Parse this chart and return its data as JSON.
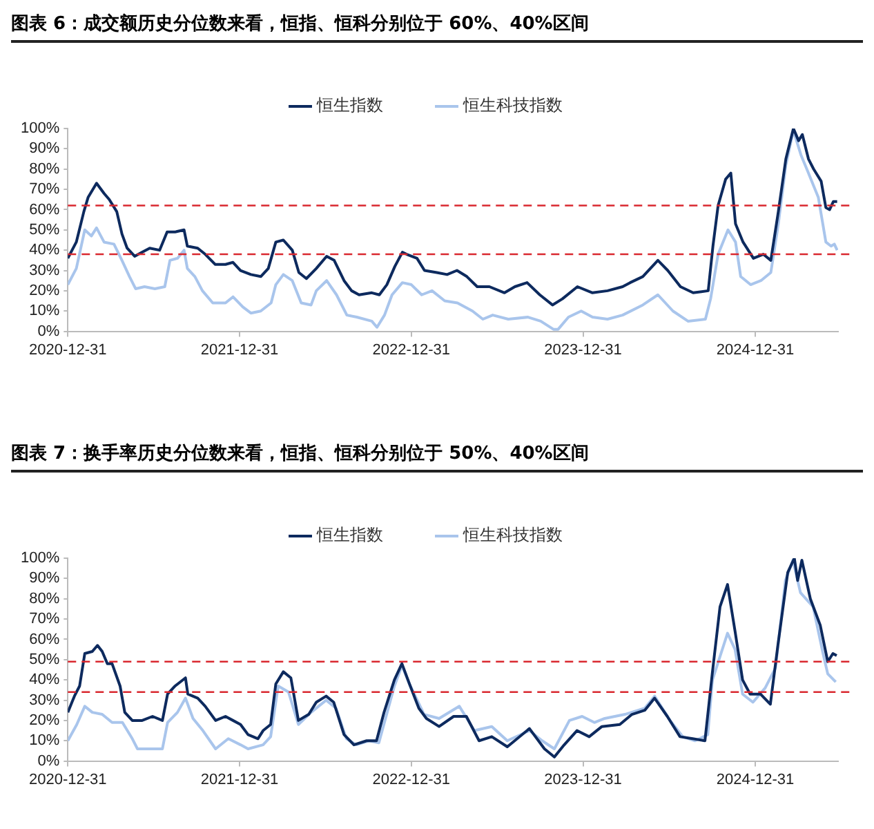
{
  "chart_data": [
    {
      "type": "line",
      "title": "图表 6：成交额历史分位数来看，恒指、恒科分别位于 60%、40%区间",
      "legend": "top",
      "line_style": "solid",
      "marker": "none",
      "xlim": [
        "2020-12-31",
        "2025-06-25"
      ],
      "xticks": [
        "2020-12-31",
        "2021-12-31",
        "2022-12-31",
        "2023-12-31",
        "2024-12-31"
      ],
      "ylim": [
        0,
        100
      ],
      "yticks": [
        {
          "value": 0,
          "label": "0%"
        },
        {
          "value": 10,
          "label": "10%"
        },
        {
          "value": 20,
          "label": "20%"
        },
        {
          "value": 30,
          "label": "30%"
        },
        {
          "value": 40,
          "label": "40%"
        },
        {
          "value": 50,
          "label": "50%"
        },
        {
          "value": 60,
          "label": "60%"
        },
        {
          "value": 70,
          "label": "70%"
        },
        {
          "value": 80,
          "label": "80%"
        },
        {
          "value": 90,
          "label": "90%"
        },
        {
          "value": 100,
          "label": "100%"
        }
      ],
      "ref_lines": [
        {
          "axis": "y",
          "value": 62,
          "color": "#d9282f",
          "line_style": "dashed"
        },
        {
          "axis": "y",
          "value": 38,
          "color": "#d9282f",
          "line_style": "dashed"
        }
      ],
      "series": [
        {
          "name": "恒生指数",
          "color": "#0d2a5e",
          "x": [
            "2020-12-31",
            "2021-01-18",
            "2021-02-03",
            "2021-02-12",
            "2021-03-02",
            "2021-03-18",
            "2021-03-29",
            "2021-04-14",
            "2021-04-25",
            "2021-05-06",
            "2021-05-22",
            "2021-06-07",
            "2021-06-23",
            "2021-07-14",
            "2021-07-30",
            "2021-08-16",
            "2021-09-04",
            "2021-09-11",
            "2021-10-03",
            "2021-10-19",
            "2021-11-09",
            "2021-12-01",
            "2021-12-17",
            "2022-01-02",
            "2022-01-24",
            "2022-02-14",
            "2022-03-02",
            "2022-03-18",
            "2022-04-03",
            "2022-04-22",
            "2022-05-06",
            "2022-05-22",
            "2022-06-12",
            "2022-07-04",
            "2022-07-20",
            "2022-08-10",
            "2022-08-26",
            "2022-09-11",
            "2022-10-08",
            "2022-10-24",
            "2022-11-09",
            "2022-11-26",
            "2022-12-12",
            "2022-12-21",
            "2023-01-12",
            "2023-01-28",
            "2023-02-23",
            "2023-03-17",
            "2023-04-07",
            "2023-04-28",
            "2023-05-20",
            "2023-06-15",
            "2023-07-17",
            "2023-08-08",
            "2023-09-03",
            "2023-09-30",
            "2023-10-27",
            "2023-11-17",
            "2023-12-19",
            "2024-01-20",
            "2024-02-21",
            "2024-03-24",
            "2024-04-09",
            "2024-05-06",
            "2024-06-07",
            "2024-06-28",
            "2024-07-25",
            "2024-08-21",
            "2024-09-22",
            "2024-10-02",
            "2024-10-13",
            "2024-10-29",
            "2024-11-09",
            "2024-11-19",
            "2024-12-05",
            "2024-12-27",
            "2025-01-17",
            "2025-02-02",
            "2025-02-18",
            "2025-03-06",
            "2025-03-22",
            "2025-04-02",
            "2025-04-10",
            "2025-04-23",
            "2025-05-04",
            "2025-05-20",
            "2025-05-30",
            "2025-06-07",
            "2025-06-15",
            "2025-06-23"
          ],
          "values": [
            36,
            44,
            59,
            66,
            73,
            68,
            65,
            59,
            48,
            41,
            37,
            39,
            41,
            40,
            49,
            49,
            50,
            42,
            41,
            38,
            33,
            33,
            34,
            30,
            28,
            27,
            31,
            44,
            45,
            40,
            29,
            26,
            31,
            37,
            35,
            25,
            20,
            18,
            19,
            18,
            23,
            32,
            39,
            38,
            36,
            30,
            29,
            28,
            30,
            27,
            22,
            22,
            19,
            22,
            24,
            18,
            13,
            16,
            22,
            19,
            20,
            22,
            24,
            27,
            35,
            30,
            22,
            19,
            20,
            42,
            62,
            75,
            78,
            53,
            44,
            36,
            38,
            35,
            59,
            85,
            100,
            94,
            97,
            85,
            80,
            74,
            61,
            60,
            64,
            64
          ]
        },
        {
          "name": "恒生科技指数",
          "color": "#a9c5ec",
          "x": [
            "2020-12-31",
            "2021-01-18",
            "2021-02-05",
            "2021-02-19",
            "2021-03-02",
            "2021-03-18",
            "2021-04-08",
            "2021-04-25",
            "2021-05-11",
            "2021-05-24",
            "2021-06-12",
            "2021-07-04",
            "2021-07-25",
            "2021-08-05",
            "2021-08-21",
            "2021-09-04",
            "2021-09-11",
            "2021-09-27",
            "2021-10-13",
            "2021-11-04",
            "2021-12-01",
            "2021-12-17",
            "2022-01-07",
            "2022-01-24",
            "2022-02-14",
            "2022-03-08",
            "2022-03-18",
            "2022-04-03",
            "2022-04-22",
            "2022-05-11",
            "2022-06-01",
            "2022-06-12",
            "2022-07-04",
            "2022-07-25",
            "2022-08-16",
            "2022-09-06",
            "2022-10-08",
            "2022-10-19",
            "2022-11-04",
            "2022-11-20",
            "2022-12-12",
            "2022-12-31",
            "2023-01-22",
            "2023-02-13",
            "2023-03-12",
            "2023-04-08",
            "2023-05-10",
            "2023-06-01",
            "2023-06-22",
            "2023-07-25",
            "2023-09-05",
            "2023-10-02",
            "2023-10-29",
            "2023-11-08",
            "2023-11-30",
            "2023-12-27",
            "2024-01-20",
            "2024-02-21",
            "2024-03-24",
            "2024-05-06",
            "2024-06-07",
            "2024-07-09",
            "2024-08-10",
            "2024-09-16",
            "2024-09-27",
            "2024-10-13",
            "2024-11-03",
            "2024-11-19",
            "2024-11-30",
            "2024-12-21",
            "2025-01-12",
            "2025-02-02",
            "2025-02-18",
            "2025-03-06",
            "2025-03-22",
            "2025-04-07",
            "2025-04-23",
            "2025-05-14",
            "2025-05-30",
            "2025-06-10",
            "2025-06-17",
            "2025-06-23"
          ],
          "values": [
            23,
            31,
            50,
            47,
            51,
            44,
            43,
            35,
            27,
            21,
            22,
            21,
            22,
            35,
            36,
            40,
            31,
            27,
            20,
            14,
            14,
            17,
            12,
            9,
            10,
            14,
            23,
            28,
            25,
            14,
            13,
            20,
            25,
            18,
            8,
            7,
            5,
            2,
            8,
            18,
            24,
            23,
            18,
            20,
            15,
            14,
            10,
            6,
            8,
            6,
            7,
            5,
            1,
            1,
            7,
            10,
            7,
            6,
            8,
            13,
            18,
            10,
            5,
            6,
            16,
            38,
            50,
            44,
            27,
            23,
            25,
            29,
            53,
            82,
            99,
            87,
            78,
            66,
            44,
            42,
            43,
            40
          ]
        }
      ]
    },
    {
      "type": "line",
      "title": "图表 7：换手率历史分位数来看，恒指、恒科分别位于 50%、40%区间",
      "legend": "top",
      "line_style": "solid",
      "marker": "none",
      "xlim": [
        "2020-12-31",
        "2025-06-25"
      ],
      "xticks": [
        "2020-12-31",
        "2021-12-31",
        "2022-12-31",
        "2023-12-31",
        "2024-12-31"
      ],
      "ylim": [
        0,
        100
      ],
      "yticks": [
        {
          "value": 0,
          "label": "0%"
        },
        {
          "value": 10,
          "label": "10%"
        },
        {
          "value": 20,
          "label": "20%"
        },
        {
          "value": 30,
          "label": "30%"
        },
        {
          "value": 40,
          "label": "40%"
        },
        {
          "value": 50,
          "label": "50%"
        },
        {
          "value": 60,
          "label": "60%"
        },
        {
          "value": 70,
          "label": "70%"
        },
        {
          "value": 80,
          "label": "80%"
        },
        {
          "value": 90,
          "label": "90%"
        },
        {
          "value": 100,
          "label": "100%"
        }
      ],
      "ref_lines": [
        {
          "axis": "y",
          "value": 49,
          "color": "#d9282f",
          "line_style": "dashed"
        },
        {
          "axis": "y",
          "value": 34,
          "color": "#d9282f",
          "line_style": "dashed"
        }
      ],
      "series": [
        {
          "name": "恒生指数",
          "color": "#0d2a5e",
          "x": [
            "2020-12-31",
            "2021-01-14",
            "2021-01-25",
            "2021-02-05",
            "2021-02-21",
            "2021-03-04",
            "2021-03-14",
            "2021-03-25",
            "2021-04-04",
            "2021-04-21",
            "2021-05-01",
            "2021-05-17",
            "2021-06-07",
            "2021-06-29",
            "2021-07-20",
            "2021-07-31",
            "2021-08-16",
            "2021-09-07",
            "2021-09-12",
            "2021-10-03",
            "2021-10-19",
            "2021-11-10",
            "2021-12-01",
            "2021-12-17",
            "2022-01-02",
            "2022-01-18",
            "2022-02-08",
            "2022-02-19",
            "2022-03-07",
            "2022-03-18",
            "2022-04-03",
            "2022-04-19",
            "2022-05-05",
            "2022-05-27",
            "2022-06-12",
            "2022-07-03",
            "2022-07-19",
            "2022-08-10",
            "2022-08-31",
            "2022-09-27",
            "2022-10-18",
            "2022-11-03",
            "2022-11-25",
            "2022-12-11",
            "2022-12-27",
            "2023-01-16",
            "2023-02-01",
            "2023-02-28",
            "2023-03-31",
            "2023-04-27",
            "2023-05-24",
            "2023-06-20",
            "2023-07-23",
            "2023-09-08",
            "2023-10-10",
            "2023-10-31",
            "2023-11-21",
            "2023-12-18",
            "2024-01-13",
            "2024-02-09",
            "2024-03-18",
            "2024-04-13",
            "2024-05-10",
            "2024-05-31",
            "2024-06-27",
            "2024-07-24",
            "2024-08-20",
            "2024-09-15",
            "2024-10-01",
            "2024-10-17",
            "2024-11-02",
            "2024-11-18",
            "2024-12-04",
            "2024-12-20",
            "2025-01-11",
            "2025-02-01",
            "2025-02-17",
            "2025-03-10",
            "2025-03-24",
            "2025-03-31",
            "2025-04-09",
            "2025-04-27",
            "2025-05-18",
            "2025-06-03",
            "2025-06-14",
            "2025-06-22"
          ],
          "values": [
            24,
            32,
            37,
            53,
            54,
            57,
            54,
            48,
            48,
            37,
            24,
            20,
            20,
            22,
            20,
            33,
            37,
            41,
            33,
            31,
            27,
            20,
            22,
            20,
            18,
            13,
            11,
            15,
            18,
            38,
            44,
            41,
            20,
            23,
            29,
            32,
            29,
            13,
            8,
            10,
            10,
            24,
            40,
            48,
            38,
            26,
            21,
            17,
            22,
            22,
            10,
            12,
            7,
            16,
            6,
            2,
            8,
            15,
            12,
            17,
            18,
            23,
            25,
            31,
            22,
            12,
            11,
            10,
            44,
            76,
            87,
            64,
            40,
            33,
            33,
            28,
            57,
            93,
            100,
            89,
            99,
            80,
            67,
            49,
            53,
            52
          ]
        },
        {
          "name": "恒生科技指数",
          "color": "#a9c5ec",
          "x": [
            "2020-12-31",
            "2021-01-19",
            "2021-02-05",
            "2021-02-21",
            "2021-03-14",
            "2021-04-04",
            "2021-04-26",
            "2021-05-17",
            "2021-05-28",
            "2021-06-29",
            "2021-07-20",
            "2021-07-31",
            "2021-08-21",
            "2021-09-07",
            "2021-09-23",
            "2021-10-14",
            "2021-11-10",
            "2021-12-07",
            "2022-01-02",
            "2022-01-18",
            "2022-02-19",
            "2022-03-07",
            "2022-03-23",
            "2022-04-14",
            "2022-05-05",
            "2022-06-01",
            "2022-07-03",
            "2022-07-24",
            "2022-08-15",
            "2022-09-05",
            "2022-10-02",
            "2022-10-23",
            "2022-11-25",
            "2022-12-11",
            "2022-12-27",
            "2023-01-27",
            "2023-02-28",
            "2023-04-12",
            "2023-05-14",
            "2023-06-20",
            "2023-07-23",
            "2023-09-08",
            "2023-10-05",
            "2023-10-31",
            "2023-12-02",
            "2023-12-29",
            "2024-01-24",
            "2024-02-15",
            "2024-03-29",
            "2024-05-10",
            "2024-05-31",
            "2024-07-03",
            "2024-07-30",
            "2024-08-25",
            "2024-09-21",
            "2024-10-01",
            "2024-11-02",
            "2024-11-18",
            "2024-12-04",
            "2024-12-26",
            "2025-01-21",
            "2025-02-12",
            "2025-03-05",
            "2025-03-21",
            "2025-04-06",
            "2025-05-03",
            "2025-05-24",
            "2025-06-03",
            "2025-06-20"
          ],
          "values": [
            10,
            18,
            27,
            24,
            23,
            19,
            19,
            11,
            6,
            6,
            6,
            19,
            24,
            31,
            21,
            15,
            6,
            11,
            8,
            6,
            8,
            12,
            37,
            34,
            18,
            24,
            30,
            26,
            11,
            8,
            10,
            9,
            37,
            47,
            38,
            23,
            21,
            27,
            15,
            17,
            10,
            15,
            10,
            6,
            20,
            22,
            19,
            21,
            23,
            26,
            32,
            20,
            12,
            10,
            13,
            40,
            63,
            55,
            33,
            29,
            36,
            46,
            89,
            99,
            83,
            76,
            53,
            43,
            39
          ]
        }
      ]
    }
  ]
}
